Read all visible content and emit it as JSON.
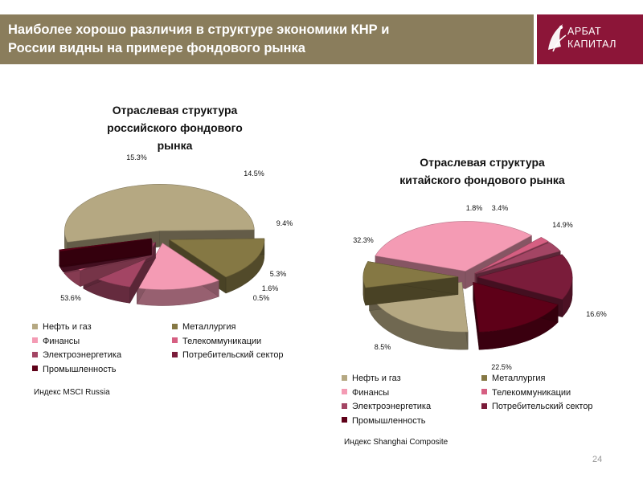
{
  "header": {
    "title_line1": "Наиболее хорошо различия в структуре экономики КНР и",
    "title_line2": "России видны на примере фондового рынка"
  },
  "logo": {
    "line1": "АРБАТ",
    "line2": "КАПИТАЛ"
  },
  "colors": {
    "header_bg": "#8a7d5c",
    "logo_bg": "#8c1538",
    "oil_gas": "#b5a882",
    "metallurgy": "#857844",
    "finance": "#f49bb4",
    "telecom": "#d65f82",
    "electric": "#a34564",
    "consumer": "#7a1c3a",
    "industry": "#5e0018"
  },
  "chart_data": [
    {
      "type": "pie",
      "title": "Отраслевая структура российского фондового рынка",
      "title_lines": [
        "Отраслевая структура",
        "российского фондового",
        "рынка"
      ],
      "slices": [
        {
          "label": "Нефть и газ",
          "value": 53.6,
          "value_label": "53.6%",
          "color_key": "oil_gas"
        },
        {
          "label": "Металлургия",
          "value": 15.3,
          "value_label": "15.3%",
          "color_key": "metallurgy"
        },
        {
          "label": "Финансы",
          "value": 14.5,
          "value_label": "14.5%",
          "color_key": "finance"
        },
        {
          "label": "Электроэнергетика",
          "value": 9.4,
          "value_label": "9.4%",
          "color_key": "electric"
        },
        {
          "label": "Телекоммуникации",
          "value": 5.3,
          "value_label": "5.3%",
          "color_key": "telecom"
        },
        {
          "label": "Потребительский сектор",
          "value": 1.6,
          "value_label": "1.6%",
          "color_key": "consumer"
        },
        {
          "label": "Промышленность",
          "value": 0.5,
          "value_label": "0.5%",
          "color_key": "industry"
        }
      ],
      "legend": [
        {
          "label": "Нефть и газ",
          "color_key": "oil_gas"
        },
        {
          "label": "Металлургия",
          "color_key": "metallurgy"
        },
        {
          "label": "Финансы",
          "color_key": "finance"
        },
        {
          "label": "Телекоммуникации",
          "color_key": "telecom"
        },
        {
          "label": "Электроэнергетика",
          "color_key": "electric"
        },
        {
          "label": "Потребительский сектор",
          "color_key": "consumer"
        },
        {
          "label": "Промышленность",
          "color_key": "industry"
        }
      ],
      "legend_placement": "bottom",
      "index_note": "Индекс MSCI Russia"
    },
    {
      "type": "pie",
      "title": "Отраслевая структура китайского фондового рынка",
      "title_lines": [
        "Отраслевая структура",
        "китайского фондового рынка"
      ],
      "slices": [
        {
          "label": "Финансы",
          "value": 32.3,
          "value_label": "32.3%",
          "color_key": "finance"
        },
        {
          "label": "Телекоммуникации",
          "value": 1.8,
          "value_label": "1.8%",
          "color_key": "telecom"
        },
        {
          "label": "Электроэнергетика",
          "value": 3.4,
          "value_label": "3.4%",
          "color_key": "electric"
        },
        {
          "label": "Потребительский сектор",
          "value": 14.9,
          "value_label": "14.9%",
          "color_key": "consumer"
        },
        {
          "label": "Промышленность",
          "value": 16.6,
          "value_label": "16.6%",
          "color_key": "industry"
        },
        {
          "label": "Нефть и газ",
          "value": 22.5,
          "value_label": "22.5%",
          "color_key": "oil_gas"
        },
        {
          "label": "Металлургия",
          "value": 8.5,
          "value_label": "8.5%",
          "color_key": "metallurgy"
        }
      ],
      "legend": [
        {
          "label": "Нефть и газ",
          "color_key": "oil_gas"
        },
        {
          "label": "Металлургия",
          "color_key": "metallurgy"
        },
        {
          "label": "Финансы",
          "color_key": "finance"
        },
        {
          "label": "Телекоммуникации",
          "color_key": "telecom"
        },
        {
          "label": "Электроэнергетика",
          "color_key": "electric"
        },
        {
          "label": "Потребительский сектор",
          "color_key": "consumer"
        },
        {
          "label": "Промышленность",
          "color_key": "industry"
        }
      ],
      "legend_placement": "bottom",
      "index_note": "Индекс Shanghai Composite"
    }
  ],
  "page_number": "24"
}
